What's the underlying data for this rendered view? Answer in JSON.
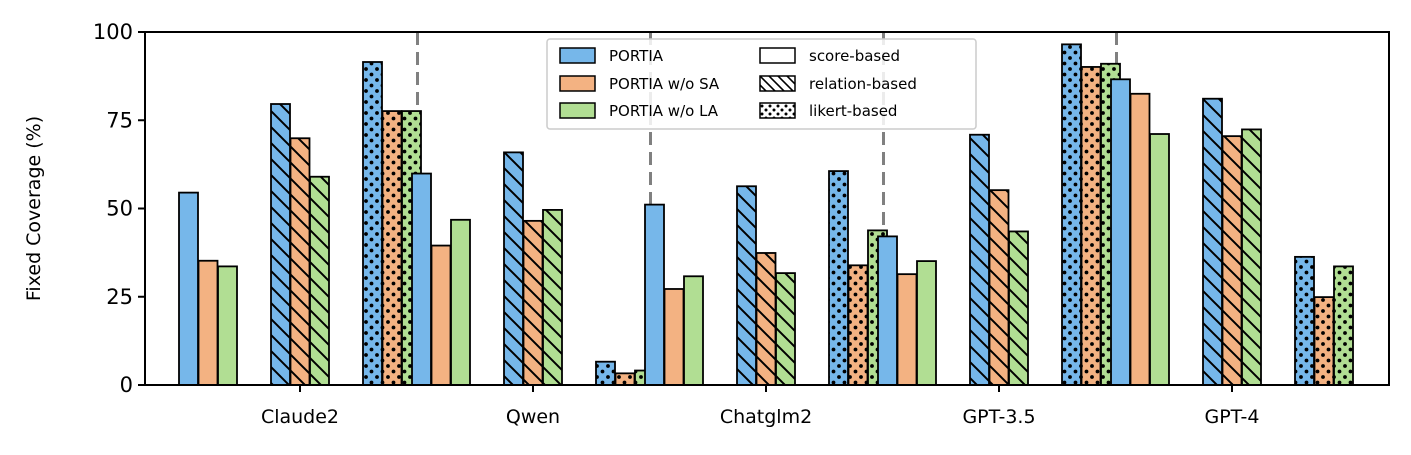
{
  "chart_data": {
    "type": "bar",
    "ylabel": "Fixed Coverage (%)",
    "ylim": [
      0,
      100
    ],
    "yticks": [
      0,
      25,
      50,
      75,
      100
    ],
    "categories": [
      "Claude2",
      "Qwen",
      "Chatglm2",
      "GPT-3.5",
      "GPT-4"
    ],
    "methods": [
      {
        "name": "PORTIA",
        "color": "#76b7ea"
      },
      {
        "name": "PORTIA w/o SA",
        "color": "#f3b282"
      },
      {
        "name": "PORTIA w/o LA",
        "color": "#b1de93"
      }
    ],
    "formats": [
      {
        "name": "score-based",
        "hatch": "none"
      },
      {
        "name": "relation-based",
        "hatch": "diagonal"
      },
      {
        "name": "likert-based",
        "hatch": "dots"
      }
    ],
    "values": {
      "Claude2": {
        "score-based": [
          54.5,
          35.2,
          33.6
        ],
        "relation-based": [
          79.6,
          69.9,
          59.0
        ],
        "likert-based": [
          91.5,
          77.6,
          77.6
        ]
      },
      "Qwen": {
        "score-based": [
          59.9,
          39.5,
          46.8
        ],
        "relation-based": [
          65.9,
          46.5,
          49.6
        ],
        "likert-based": [
          6.6,
          3.3,
          4.1
        ]
      },
      "Chatglm2": {
        "score-based": [
          51.1,
          27.2,
          30.8
        ],
        "relation-based": [
          56.3,
          37.4,
          31.7
        ],
        "likert-based": [
          60.6,
          33.9,
          43.8
        ]
      },
      "GPT-3.5": {
        "score-based": [
          42.1,
          31.4,
          35.1
        ],
        "relation-based": [
          70.9,
          55.2,
          43.5
        ],
        "likert-based": [
          96.5,
          90.1,
          91.0
        ]
      },
      "GPT-4": {
        "score-based": [
          86.6,
          82.5,
          71.1
        ],
        "relation-based": [
          81.1,
          70.5,
          72.4
        ],
        "likert-based": [
          36.3,
          24.9,
          33.6
        ]
      }
    },
    "separators": "dashed vertical lines between model groups",
    "legend": "top-center, two columns",
    "grid": false,
    "colors": {
      "separator": "#808080",
      "bar_edge": "#000000"
    }
  }
}
